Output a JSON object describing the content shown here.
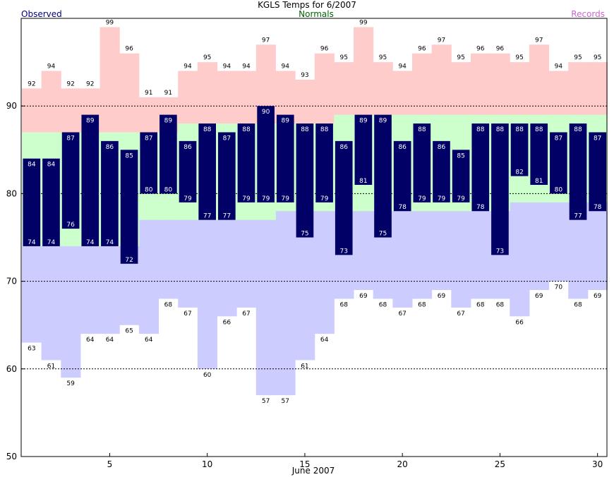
{
  "chart_data": {
    "type": "bar",
    "title": "KGLS Temps for 6/2007",
    "legend": {
      "observed": "Observed",
      "normals": "Normals",
      "records": "Records"
    },
    "xlabel": "June 2007",
    "xlim": [
      1,
      30
    ],
    "ylim": [
      50,
      100
    ],
    "x_ticks": [
      5,
      10,
      15,
      20,
      25,
      30
    ],
    "y_ticks": [
      50,
      60,
      70,
      80,
      90
    ],
    "grid": "dashed horizontal lines at 60, 70, 80, 90",
    "colors": {
      "observed": "#000066",
      "normals": "#ccffcc",
      "record_high": "#ffcccc",
      "record_low": "#ccccff",
      "legend_observed": "#000080",
      "legend_normals": "#006400",
      "legend_records": "#cc66cc"
    },
    "days": [
      1,
      2,
      3,
      4,
      5,
      6,
      7,
      8,
      9,
      10,
      11,
      12,
      13,
      14,
      15,
      16,
      17,
      18,
      19,
      20,
      21,
      22,
      23,
      24,
      25,
      26,
      27,
      28,
      29,
      30
    ],
    "series": [
      {
        "name": "Observed high",
        "values": [
          84,
          84,
          87,
          89,
          86,
          85,
          87,
          89,
          86,
          88,
          87,
          88,
          90,
          89,
          88,
          88,
          86,
          89,
          89,
          86,
          88,
          86,
          85,
          88,
          88,
          88,
          88,
          87,
          88,
          87
        ]
      },
      {
        "name": "Observed low",
        "values": [
          74,
          74,
          76,
          74,
          74,
          72,
          80,
          80,
          79,
          77,
          77,
          79,
          79,
          79,
          75,
          79,
          73,
          81,
          75,
          78,
          79,
          79,
          79,
          78,
          73,
          82,
          81,
          80,
          77,
          78
        ]
      },
      {
        "name": "Normal high",
        "values": [
          87,
          87,
          87,
          87,
          87,
          87,
          87,
          87,
          88,
          88,
          88,
          88,
          88,
          88,
          88,
          88,
          89,
          89,
          89,
          89,
          89,
          89,
          89,
          89,
          89,
          89,
          89,
          89,
          89,
          89
        ]
      },
      {
        "name": "Normal low",
        "values": [
          74,
          74,
          74,
          74,
          74,
          74,
          77,
          77,
          77,
          77,
          77,
          77,
          77,
          78,
          78,
          78,
          78,
          78,
          78,
          78,
          78,
          78,
          78,
          78,
          78,
          79,
          79,
          79,
          79,
          79
        ]
      },
      {
        "name": "Record high",
        "values": [
          92,
          94,
          92,
          92,
          99,
          96,
          91,
          91,
          94,
          95,
          94,
          94,
          97,
          94,
          93,
          96,
          95,
          99,
          95,
          94,
          96,
          97,
          95,
          96,
          96,
          95,
          97,
          94,
          95,
          95
        ]
      },
      {
        "name": "Record low",
        "values": [
          63,
          61,
          59,
          64,
          64,
          65,
          64,
          68,
          67,
          60,
          66,
          67,
          57,
          57,
          61,
          64,
          68,
          69,
          68,
          67,
          68,
          69,
          67,
          68,
          68,
          66,
          69,
          70,
          68,
          69
        ]
      }
    ]
  }
}
